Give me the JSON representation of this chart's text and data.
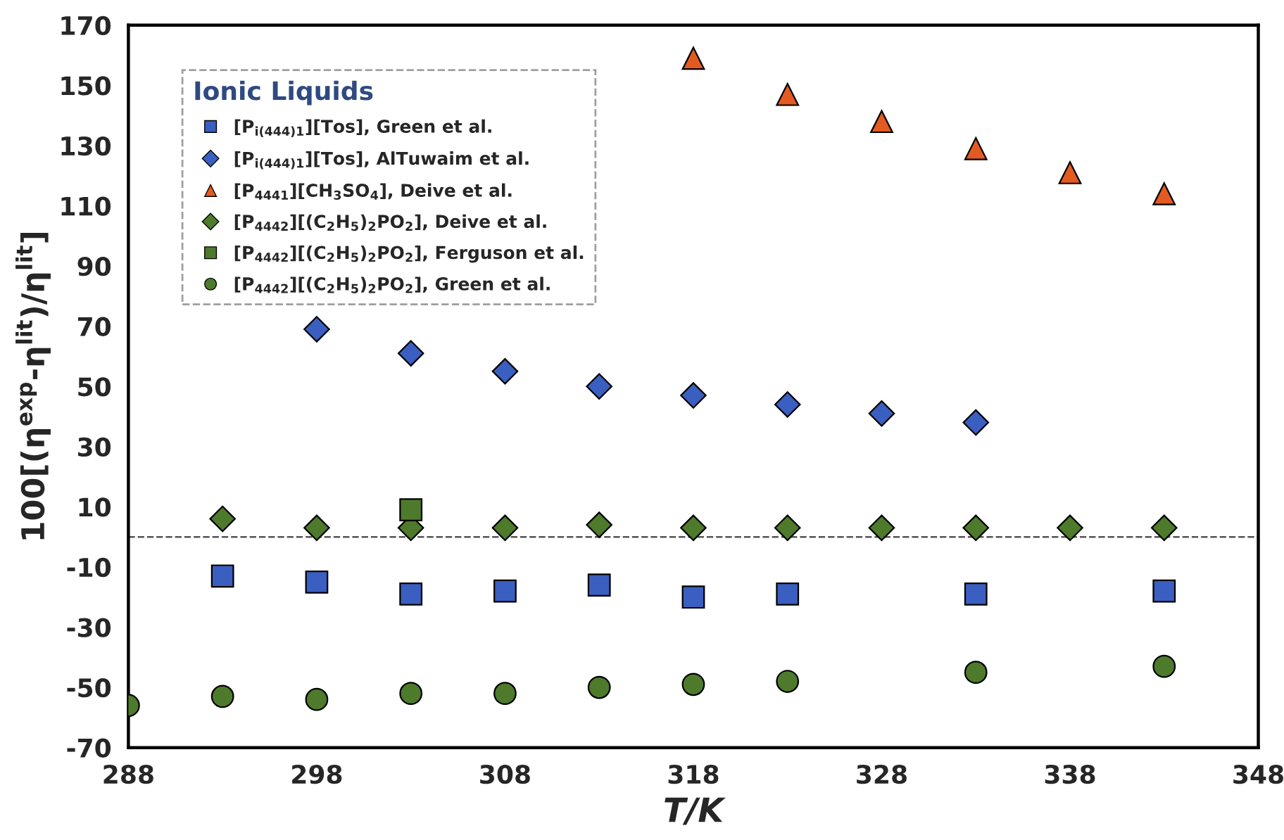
{
  "chart_data": {
    "type": "scatter",
    "xlabel": "T/K",
    "ylabel": "100[(η$^{exp}$-η$^{lit}$)/η$^{lit}$]",
    "legend_title": "Ionic Liquids",
    "legend": "top left",
    "grid": false,
    "xlim": [
      288,
      348
    ],
    "xticks": [
      288,
      298,
      308,
      318,
      328,
      338,
      348
    ],
    "ylim": [
      -70,
      170
    ],
    "yticks": [
      -70,
      -50,
      -30,
      -10,
      10,
      30,
      50,
      70,
      90,
      110,
      130,
      150,
      170
    ],
    "ref_lines": [
      {
        "axis": "y",
        "value": 0,
        "color": "#555555",
        "line_style": "dashed"
      }
    ],
    "series": [
      {
        "name": "[P$_{i(444)1}$][Tos], Green et al.",
        "color": "#3a5fc0",
        "marker": "square",
        "x": [
          293,
          298,
          303,
          308,
          313,
          318,
          323,
          333,
          343
        ],
        "values": [
          -13,
          -15,
          -19,
          -18,
          -16,
          -20,
          -19,
          -19,
          -18
        ]
      },
      {
        "name": "[P$_{i(444)1}$][Tos], AlTuwaim et al.",
        "color": "#3a5fc0",
        "marker": "diamond",
        "x": [
          298,
          303,
          308,
          313,
          318,
          323,
          328,
          333
        ],
        "values": [
          69,
          61,
          55,
          50,
          47,
          44,
          41,
          38
        ]
      },
      {
        "name": "[P$_{4441}$][CH$_{3}$SO$_{4}$], Deive et al.",
        "color": "#e35b20",
        "marker": "triangle",
        "x": [
          318,
          323,
          328,
          333,
          338,
          343
        ],
        "values": [
          159,
          147,
          138,
          129,
          121,
          114
        ]
      },
      {
        "name": "[P$_{4442}$][(C$_{2}$H$_{5}$)$_{2}$PO$_{2}$], Deive et al.",
        "color": "#4e7a2c",
        "marker": "diamond",
        "x": [
          293,
          298,
          303,
          308,
          313,
          318,
          323,
          328,
          333,
          338,
          343
        ],
        "values": [
          6,
          3,
          3,
          3,
          4,
          3,
          3,
          3,
          3,
          3,
          3
        ]
      },
      {
        "name": "[P$_{4442}$][(C$_{2}$H$_{5}$)$_{2}$PO$_{2}$], Ferguson et al.",
        "color": "#4e7a2c",
        "marker": "square",
        "x": [
          303
        ],
        "values": [
          9
        ]
      },
      {
        "name": "[P$_{4442}$][(C$_{2}$H$_{5}$)$_{2}$PO$_{2}$], Green et al.",
        "color": "#4e7a2c",
        "marker": "circle",
        "x": [
          288,
          293,
          298,
          303,
          308,
          313,
          318,
          323,
          333,
          343
        ],
        "values": [
          -56,
          -53,
          -54,
          -52,
          -52,
          -50,
          -49,
          -48,
          -45,
          -43
        ]
      }
    ]
  }
}
